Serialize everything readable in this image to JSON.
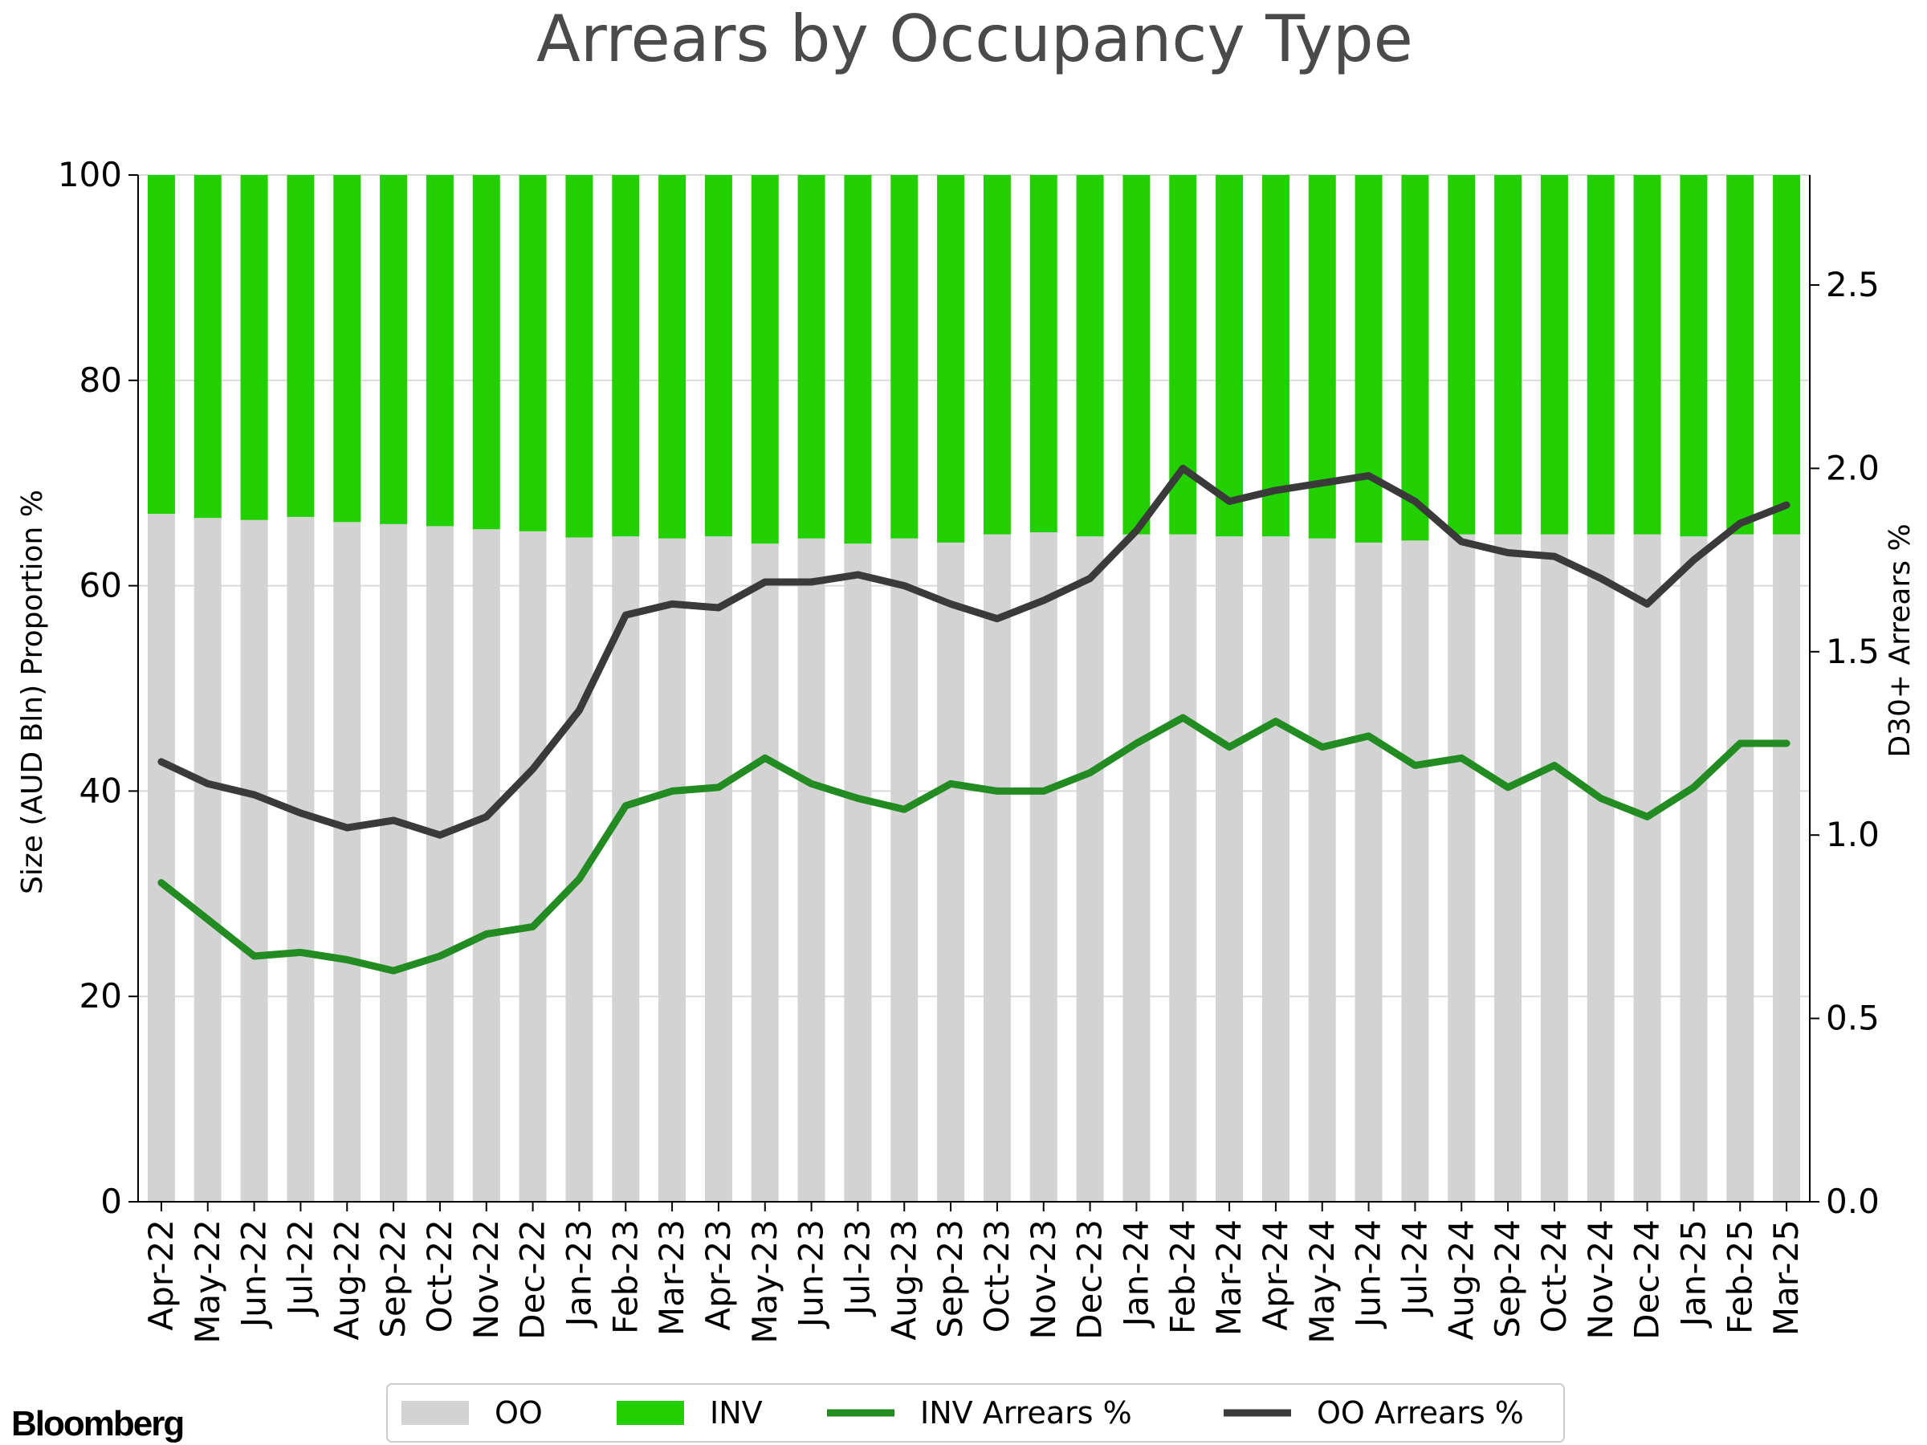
{
  "brand": "Bloomberg",
  "colors": {
    "oo": "#d3d3d3",
    "inv": "#22d000",
    "inv_line": "#228b22",
    "oo_line": "#3a3a3a",
    "grid": "#d9d9d9",
    "title": "#4a4a4a"
  },
  "chart_data": {
    "type": "bar",
    "stacked": true,
    "title": "Arrears by Occupancy Type",
    "ylabel": "Size (AUD Bln) Proportion %",
    "y2label": "D30+ Arrears %",
    "ylim": [
      0,
      100
    ],
    "y2lim": [
      0,
      2.8
    ],
    "yticks": [
      "0",
      "20",
      "40",
      "60",
      "80",
      "100"
    ],
    "y2ticks": [
      "0.0",
      "0.5",
      "1.0",
      "1.5",
      "2.0",
      "2.5"
    ],
    "grid": true,
    "legend_position": "bottom",
    "categories": [
      "Apr-22",
      "May-22",
      "Jun-22",
      "Jul-22",
      "Aug-22",
      "Sep-22",
      "Oct-22",
      "Nov-22",
      "Dec-22",
      "Jan-23",
      "Feb-23",
      "Mar-23",
      "Apr-23",
      "May-23",
      "Jun-23",
      "Jul-23",
      "Aug-23",
      "Sep-23",
      "Oct-23",
      "Nov-23",
      "Dec-23",
      "Jan-24",
      "Feb-24",
      "Mar-24",
      "Apr-24",
      "May-24",
      "Jun-24",
      "Jul-24",
      "Aug-24",
      "Sep-24",
      "Oct-24",
      "Nov-24",
      "Dec-24",
      "Jan-25",
      "Feb-25",
      "Mar-25"
    ],
    "series": [
      {
        "name": "OO",
        "type": "bar",
        "axis": "left",
        "values": [
          67.0,
          66.6,
          66.4,
          66.7,
          66.2,
          66.0,
          65.8,
          65.5,
          65.3,
          64.7,
          64.8,
          64.6,
          64.8,
          64.1,
          64.6,
          64.1,
          64.6,
          64.2,
          65.0,
          65.2,
          64.8,
          65.0,
          65.0,
          64.8,
          64.8,
          64.6,
          64.2,
          64.4,
          65.0,
          65.0,
          65.0,
          65.0,
          65.0,
          64.8,
          65.0,
          65.0
        ]
      },
      {
        "name": "INV",
        "type": "bar",
        "axis": "left",
        "values": [
          33.0,
          33.4,
          33.6,
          33.3,
          33.8,
          34.0,
          34.2,
          34.5,
          34.7,
          35.3,
          35.2,
          35.4,
          35.2,
          35.9,
          35.4,
          35.9,
          35.4,
          35.8,
          35.0,
          34.8,
          35.2,
          35.0,
          35.0,
          35.2,
          35.2,
          35.4,
          35.8,
          35.6,
          35.0,
          35.0,
          35.0,
          35.0,
          35.0,
          35.2,
          35.0,
          35.0
        ]
      },
      {
        "name": "INV Arrears %",
        "type": "line",
        "axis": "right",
        "values": [
          0.87,
          0.77,
          0.67,
          0.68,
          0.66,
          0.63,
          0.67,
          0.73,
          0.75,
          0.88,
          1.08,
          1.12,
          1.13,
          1.21,
          1.14,
          1.1,
          1.07,
          1.14,
          1.12,
          1.12,
          1.17,
          1.25,
          1.32,
          1.24,
          1.31,
          1.24,
          1.27,
          1.19,
          1.21,
          1.13,
          1.19,
          1.1,
          1.05,
          1.13,
          1.25,
          1.25
        ]
      },
      {
        "name": "OO Arrears %",
        "type": "line",
        "axis": "right",
        "values": [
          1.2,
          1.14,
          1.11,
          1.06,
          1.02,
          1.04,
          1.0,
          1.05,
          1.18,
          1.34,
          1.6,
          1.63,
          1.62,
          1.69,
          1.69,
          1.71,
          1.68,
          1.63,
          1.59,
          1.64,
          1.7,
          1.83,
          2.0,
          1.91,
          1.94,
          1.96,
          1.98,
          1.91,
          1.8,
          1.77,
          1.76,
          1.7,
          1.63,
          1.75,
          1.85,
          1.9
        ]
      }
    ]
  }
}
